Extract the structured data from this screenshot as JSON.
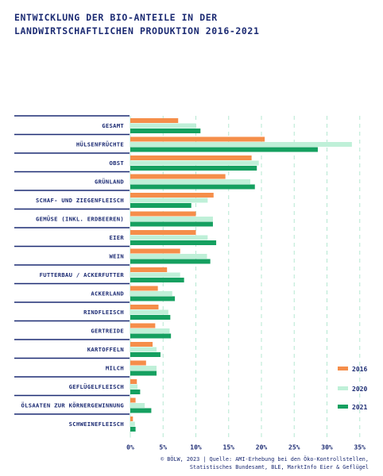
{
  "title": [
    "ENTWICKLUNG DER BIO-ANTEILE IN DER",
    "LANDWIRTSCHAFTLICHEN PRODUKTION 2016-2021"
  ],
  "source": [
    "© BÖLW, 2023 | Quelle: AMI-Erhebung bei den Öko-Kontrollstellen,",
    "Statistisches Bundesamt, BLE, MarktInfo Eier & Geflügel"
  ],
  "colors": {
    "2016": "#f58e4a",
    "2020": "#bff0d8",
    "2021": "#15a060",
    "text": "#1c2b73",
    "grid": "#b5e8d2"
  },
  "chart_data": {
    "type": "bar",
    "orientation": "horizontal",
    "categories": [
      "GESAMT",
      "HÜLSENFRÜCHTE",
      "OBST",
      "GRÜNLAND",
      "SCHAF- UND ZIEGENFLEISCH",
      "GEMÜSE (INKL. ERDBEEREN)",
      "EIER",
      "WEIN",
      "FUTTERBAU / ACKERFUTTER",
      "ACKERLAND",
      "RINDFLEISCH",
      "GERTREIDE",
      "KARTOFFELN",
      "MILCH",
      "GEFLÜGELFLEISCH",
      "ÖLSAATEN ZUR KÖRNERGEWINNUNG",
      "SCHWEINEFLEISCH"
    ],
    "series": [
      {
        "name": "2016",
        "values": [
          7.3,
          20.5,
          18.5,
          14.5,
          12.7,
          10.0,
          10.0,
          7.6,
          5.6,
          4.2,
          4.3,
          3.8,
          3.4,
          2.4,
          1.0,
          0.8,
          0.4
        ]
      },
      {
        "name": "2020",
        "values": [
          10.0,
          33.8,
          19.6,
          18.3,
          11.8,
          12.6,
          11.8,
          11.7,
          7.6,
          6.4,
          5.8,
          6.0,
          4.0,
          4.0,
          1.1,
          2.2,
          0.7
        ]
      },
      {
        "name": "2021",
        "values": [
          10.7,
          28.6,
          19.3,
          19.0,
          9.3,
          12.6,
          13.1,
          12.2,
          8.2,
          6.8,
          6.1,
          6.2,
          4.6,
          4.0,
          1.5,
          3.2,
          0.8
        ]
      }
    ],
    "xlim": [
      0,
      35
    ],
    "xticks": [
      "0%",
      "5%",
      "10%",
      "15%",
      "20%",
      "25%",
      "30%",
      "35%"
    ],
    "grid": true,
    "legend": "bottom-right"
  }
}
